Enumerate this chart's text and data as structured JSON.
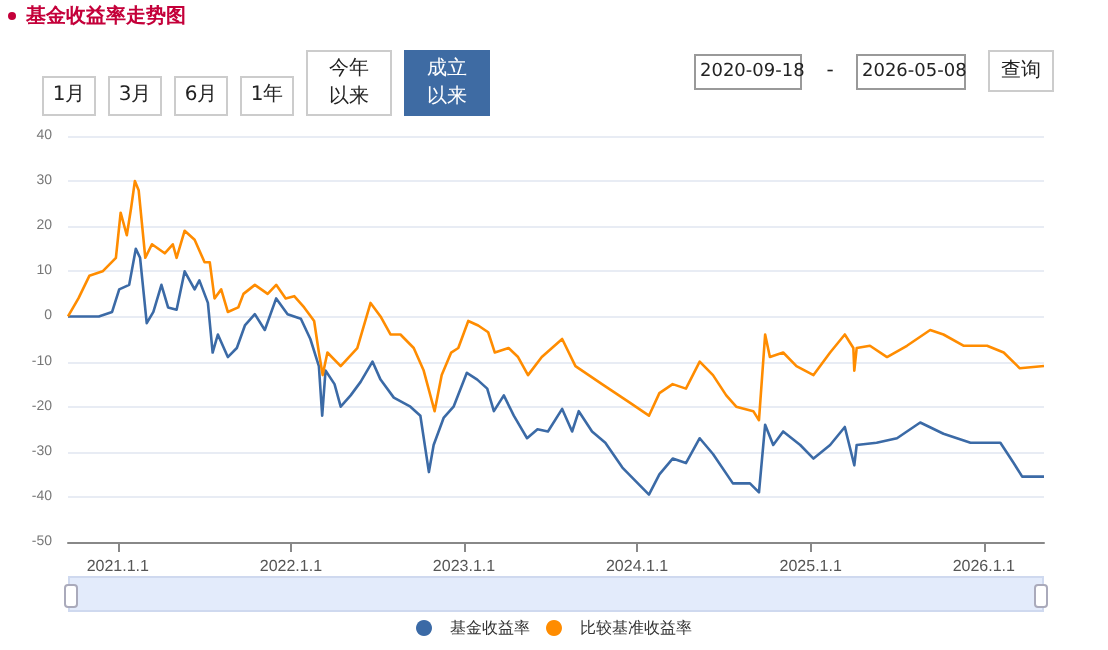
{
  "chart_data": {
    "type": "line",
    "title": "基金收益率走势图",
    "annotations": [
      "1月",
      "3月",
      "6月",
      "1年",
      "今年以来",
      "成立以来",
      "2020-09-18",
      "-",
      "2026-05-08",
      "查询"
    ],
    "xlim": [
      "2020-09-18",
      "2026-05-08"
    ],
    "xticks": [
      {
        "value": "2021-01-01",
        "label": "2021.1.1"
      },
      {
        "value": "2022-01-01",
        "label": "2022.1.1"
      },
      {
        "value": "2023-01-01",
        "label": "2023.1.1"
      },
      {
        "value": "2024-01-01",
        "label": "2024.1.1"
      },
      {
        "value": "2025-01-01",
        "label": "2025.1.1"
      },
      {
        "value": "2026-01-01",
        "label": "2026.1.1"
      }
    ],
    "ylim": [
      -50,
      40
    ],
    "yticks": [
      -50,
      -40,
      -30,
      -20,
      -10,
      0,
      10,
      20,
      30,
      40
    ],
    "grid": "y",
    "legend": "bottom",
    "marker": "none",
    "line_style": "solid",
    "series": [
      {
        "name": "基金收益率",
        "color": "#3b6aa6",
        "x": [
          "2020-09-18",
          "2020-11-22",
          "2020-12-20",
          "2021-01-04",
          "2021-01-25",
          "2021-02-08",
          "2021-02-17",
          "2021-03-03",
          "2021-03-17",
          "2021-04-03",
          "2021-04-17",
          "2021-05-05",
          "2021-05-22",
          "2021-06-12",
          "2021-06-22",
          "2021-07-10",
          "2021-07-20",
          "2021-07-31",
          "2021-08-21",
          "2021-09-09",
          "2021-09-26",
          "2021-10-17",
          "2021-11-07",
          "2021-12-01",
          "2021-12-25",
          "2022-01-22",
          "2022-02-11",
          "2022-03-01",
          "2022-03-08",
          "2022-03-15",
          "2022-04-03",
          "2022-04-16",
          "2022-05-07",
          "2022-05-28",
          "2022-06-22",
          "2022-07-09",
          "2022-08-06",
          "2022-09-10",
          "2022-10-01",
          "2022-10-19",
          "2022-10-29",
          "2022-11-19",
          "2022-12-10",
          "2023-01-07",
          "2023-01-29",
          "2023-02-19",
          "2023-03-05",
          "2023-03-26",
          "2023-04-16",
          "2023-05-14",
          "2023-06-05",
          "2023-06-27",
          "2023-07-27",
          "2023-08-17",
          "2023-08-31",
          "2023-09-28",
          "2023-10-26",
          "2023-12-01",
          "2023-12-29",
          "2024-01-26",
          "2024-02-17",
          "2024-03-16",
          "2024-04-13",
          "2024-05-12",
          "2024-06-09",
          "2024-07-21",
          "2024-08-26",
          "2024-09-14",
          "2024-09-27",
          "2024-10-14",
          "2024-11-04",
          "2024-12-10",
          "2025-01-07",
          "2025-02-11",
          "2025-03-14",
          "2025-04-03",
          "2025-04-08",
          "2025-05-20",
          "2025-07-02",
          "2025-08-20",
          "2025-10-08",
          "2025-12-04",
          "2026-02-05",
          "2026-03-05",
          "2026-03-23",
          "2026-05-08"
        ],
        "values": [
          0,
          0,
          1,
          6,
          7,
          15,
          13,
          -1.5,
          1,
          7,
          2,
          1.5,
          10,
          6,
          8,
          3,
          -8,
          -4,
          -9,
          -7,
          -2,
          0.5,
          -3,
          4,
          0.5,
          -0.5,
          -5,
          -11,
          -22,
          -12,
          -15,
          -20,
          -17.5,
          -14.5,
          -10,
          -14,
          -18,
          -20,
          -22,
          -34.5,
          -28.5,
          -22.5,
          -20,
          -12.5,
          -14,
          -16,
          -21,
          -17.5,
          -22,
          -27,
          -25,
          -25.5,
          -20.5,
          -25.5,
          -21,
          -25.5,
          -28,
          -33.5,
          -36.5,
          -39.5,
          -35,
          -31.5,
          -32.5,
          -27,
          -30.5,
          -37,
          -37,
          -39,
          -24,
          -28.5,
          -25.5,
          -28.5,
          -31.5,
          -28.5,
          -24.5,
          -33,
          -28.5,
          -28,
          -27,
          -23.5,
          -26,
          -28,
          -28,
          -32.5,
          -35.5,
          -35.5
        ]
      },
      {
        "name": "比较基准收益率",
        "color": "#ff8c00",
        "x": [
          "2020-09-18",
          "2020-10-10",
          "2020-11-02",
          "2020-11-30",
          "2020-12-28",
          "2021-01-07",
          "2021-01-20",
          "2021-01-29",
          "2021-02-06",
          "2021-02-14",
          "2021-02-28",
          "2021-03-14",
          "2021-04-10",
          "2021-04-27",
          "2021-05-05",
          "2021-05-22",
          "2021-06-12",
          "2021-07-03",
          "2021-07-14",
          "2021-07-24",
          "2021-08-07",
          "2021-08-21",
          "2021-09-12",
          "2021-09-23",
          "2021-10-17",
          "2021-11-13",
          "2021-12-01",
          "2021-12-21",
          "2022-01-08",
          "2022-01-29",
          "2022-02-19",
          "2022-03-01",
          "2022-03-09",
          "2022-03-19",
          "2022-04-16",
          "2022-05-21",
          "2022-06-18",
          "2022-07-09",
          "2022-07-30",
          "2022-08-20",
          "2022-09-17",
          "2022-10-08",
          "2022-10-31",
          "2022-11-15",
          "2022-12-05",
          "2022-12-20",
          "2023-01-10",
          "2023-01-31",
          "2023-02-21",
          "2023-03-07",
          "2023-04-05",
          "2023-04-25",
          "2023-05-16",
          "2023-06-14",
          "2023-07-27",
          "2023-08-24",
          "2023-10-19",
          "2023-12-15",
          "2024-01-26",
          "2024-02-17",
          "2024-03-16",
          "2024-04-13",
          "2024-05-12",
          "2024-06-09",
          "2024-07-07",
          "2024-07-28",
          "2024-09-02",
          "2024-09-14",
          "2024-09-27",
          "2024-10-07",
          "2024-11-04",
          "2024-12-02",
          "2025-01-07",
          "2025-02-11",
          "2025-03-14",
          "2025-04-01",
          "2025-04-03",
          "2025-04-08",
          "2025-05-06",
          "2025-06-11",
          "2025-07-23",
          "2025-09-10",
          "2025-10-08",
          "2025-11-20",
          "2026-01-08",
          "2026-02-12",
          "2026-03-18",
          "2026-05-08"
        ],
        "values": [
          0,
          4,
          9,
          10,
          13,
          23,
          18,
          24,
          30,
          28,
          13,
          16,
          14,
          16,
          13,
          19,
          17,
          12,
          12,
          4,
          6,
          1,
          2,
          5,
          7,
          5,
          7,
          4,
          4.5,
          2,
          -1,
          -8,
          -13,
          -8,
          -11,
          -7,
          3,
          0,
          -4,
          -4,
          -7,
          -12,
          -21,
          -13,
          -8,
          -7,
          -1,
          -2,
          -3.5,
          -8,
          -7,
          -9,
          -13,
          -9,
          -5,
          -11,
          -15,
          -19,
          -22,
          -17,
          -15,
          -16,
          -10,
          -13,
          -17.5,
          -20,
          -21,
          -23,
          -4,
          -9,
          -8,
          -11,
          -13,
          -8,
          -4,
          -7,
          -12,
          -7,
          -6.5,
          -9,
          -6.5,
          -3,
          -4,
          -6.5,
          -6.5,
          -8,
          -11.5,
          -11
        ]
      }
    ]
  }
}
